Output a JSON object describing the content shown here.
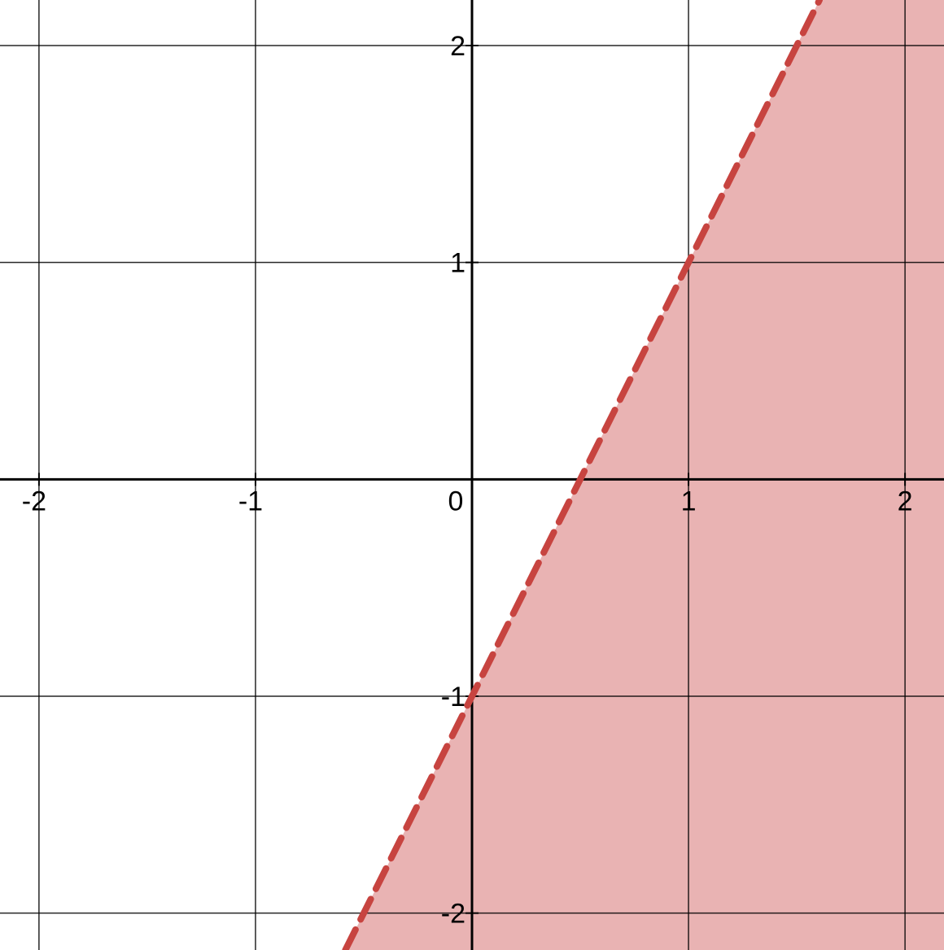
{
  "chart_data": {
    "type": "area",
    "xlim": [
      -2.18,
      2.18
    ],
    "ylim": [
      -2.17,
      2.21
    ],
    "grid": true,
    "x_ticks": [
      {
        "value": -2,
        "label": "-2"
      },
      {
        "value": -1,
        "label": "-1"
      },
      {
        "value": 1,
        "label": "1"
      },
      {
        "value": 2,
        "label": "2"
      }
    ],
    "y_ticks": [
      {
        "value": 2,
        "label": "2"
      },
      {
        "value": 1,
        "label": "1"
      },
      {
        "value": -1,
        "label": "-1"
      },
      {
        "value": -2,
        "label": "-2"
      }
    ],
    "origin_label": "0",
    "boundary_line": {
      "slope": 2,
      "intercept": -1,
      "style": "dashed",
      "color": "#c74440"
    },
    "shaded_region": {
      "side": "below",
      "color": "#c74440",
      "opacity": 0.4
    },
    "colors": {
      "axis": "#000000",
      "grid": "#000000",
      "boundary": "#c74440",
      "fill": "#e9b3b3"
    }
  }
}
